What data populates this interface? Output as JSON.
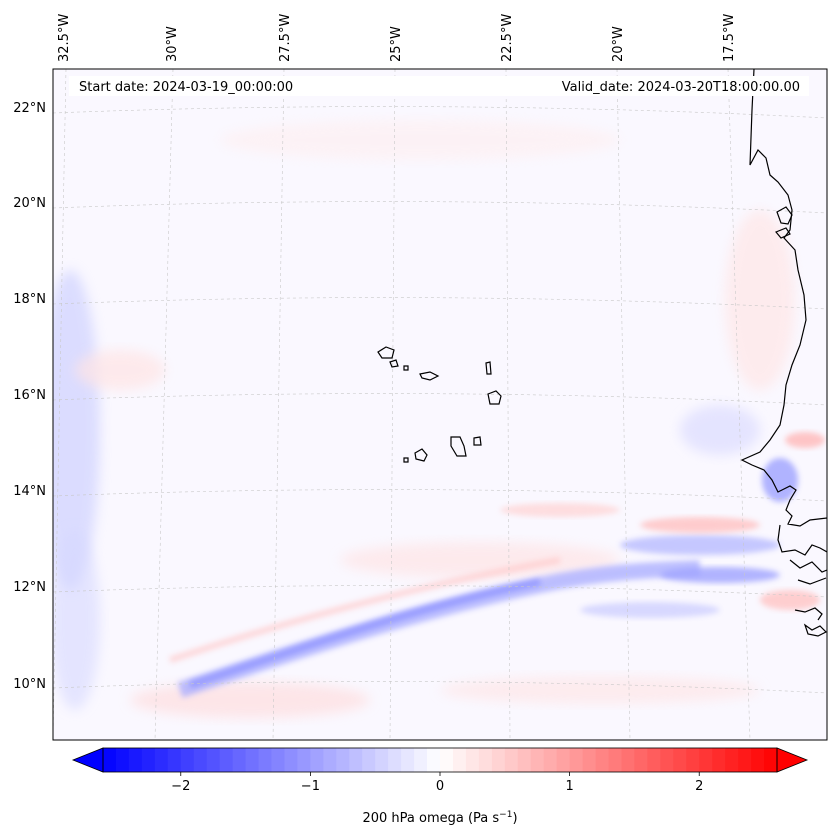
{
  "map": {
    "projection": "Lambert conformal (regional)",
    "extent_labels": {
      "longitudes": [
        "32.5°W",
        "30°W",
        "27.5°W",
        "25°W",
        "22.5°W",
        "20°W",
        "17.5°W"
      ],
      "latitudes": [
        "22°N",
        "20°N",
        "18°N",
        "16°N",
        "14°N",
        "12°N",
        "10°N"
      ]
    },
    "start_date": "Start date: 2024-03-19_00:00:00",
    "valid_date": "Valid_date: 2024-03-20T18:00:00.00",
    "field": "200 hPa omega",
    "features": [
      "Cabo Verde islands",
      "West African coastline (Senegal, Gambia, Guinea-Bissau)"
    ]
  },
  "colorbar": {
    "label_main": "200 hPa omega (Pa s",
    "label_exp": "−1",
    "label_close": ")",
    "ticks": [
      "−2",
      "−1",
      "0",
      "1",
      "2"
    ],
    "tick_values": [
      -2,
      -1,
      0,
      1,
      2
    ],
    "vmin": -2.6,
    "vmax": 2.6,
    "cmap": "bwr",
    "colors": {
      "low": "#0000ff",
      "mid": "#ffffff",
      "high": "#ff0000"
    }
  }
}
